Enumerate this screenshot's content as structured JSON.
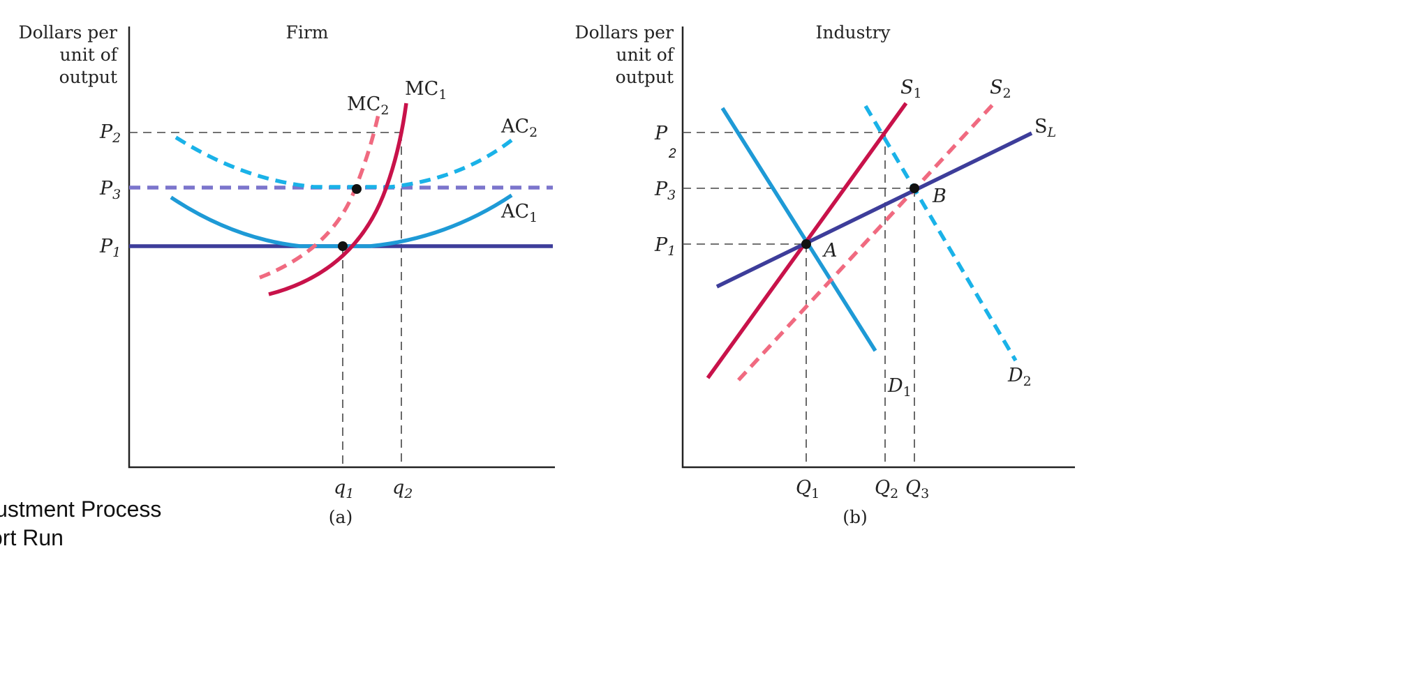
{
  "firm": {
    "title": "Firm",
    "ylabel": [
      "Dollars per",
      "unit of",
      "output"
    ],
    "price_labels": {
      "p2": {
        "base": "P",
        "sub": "2"
      },
      "p3": {
        "base": "P",
        "sub": "3"
      },
      "p1": {
        "base": "P",
        "sub": "1"
      }
    },
    "quantity_labels": {
      "q1": {
        "base": "q",
        "sub": "1"
      },
      "q2": {
        "base": "q",
        "sub": "2"
      }
    },
    "curves": {
      "mc2": {
        "base": "MC",
        "sub": "2"
      },
      "mc1": {
        "base": "MC",
        "sub": "1"
      },
      "ac2": {
        "base": "AC",
        "sub": "2"
      },
      "ac1": {
        "base": "AC",
        "sub": "1"
      }
    },
    "caption": "(a)"
  },
  "industry": {
    "title": "Industry",
    "ylabel": [
      "Dollars per",
      "unit of",
      "output"
    ],
    "price_labels": {
      "p2": {
        "base": "P",
        "sub": "2"
      },
      "p3": {
        "base": "P",
        "sub": "3"
      },
      "p1": {
        "base": "P",
        "sub": "1"
      }
    },
    "quantity_labels": {
      "q1": {
        "base": "Q",
        "sub": "1"
      },
      "q2": {
        "base": "Q",
        "sub": "2"
      },
      "q3": {
        "base": "Q",
        "sub": "3"
      }
    },
    "curves": {
      "s1": {
        "base": "S",
        "sub": "1"
      },
      "s2": {
        "base": "S",
        "sub": "2"
      },
      "sl": {
        "base": "S",
        "sub": "L"
      },
      "d1": {
        "base": "D",
        "sub": "1"
      },
      "d2": {
        "base": "D",
        "sub": "2"
      }
    },
    "points": {
      "a": "A",
      "b": "B"
    },
    "caption": "(b)"
  },
  "slide_text": {
    "line1": "justment Process",
    "line2": "ort Run"
  },
  "colors": {
    "crimson": "#c8124a",
    "pink": "#f06a80",
    "blue": "#1e9ad6",
    "light_blue": "#1ab2e8",
    "navy": "#3d3d9a",
    "purple": "#7b75cc"
  }
}
